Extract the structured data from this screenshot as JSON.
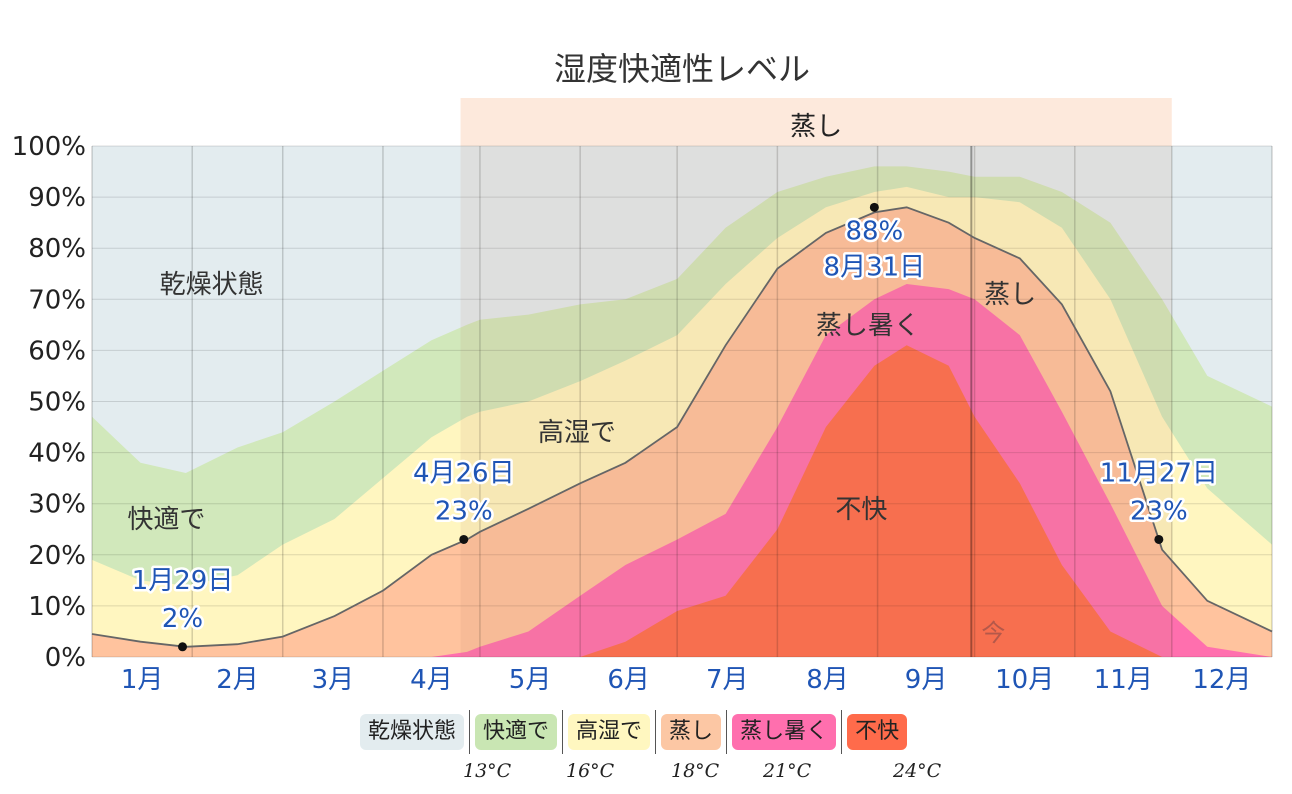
{
  "chart_data": {
    "type": "area",
    "title": "湿度快適性レベル",
    "ylim": [
      0,
      100
    ],
    "y_ticks": [
      "0%",
      "10%",
      "20%",
      "30%",
      "40%",
      "50%",
      "60%",
      "70%",
      "80%",
      "90%",
      "100%"
    ],
    "months": [
      "1月",
      "2月",
      "3月",
      "4月",
      "5月",
      "6月",
      "7月",
      "8月",
      "9月",
      "10月",
      "11月",
      "12月"
    ],
    "x_day": [
      0,
      15,
      29,
      45,
      59,
      75,
      90,
      105,
      116,
      120,
      135,
      151,
      165,
      181,
      196,
      212,
      227,
      242,
      252,
      265,
      273,
      287,
      300,
      315,
      331,
      345,
      365
    ],
    "series": [
      {
        "name": "不快",
        "color": "#ff6b4b",
        "values": [
          0,
          0,
          0,
          0,
          0,
          0,
          0,
          0,
          0,
          0,
          0,
          0,
          3,
          9,
          12,
          25,
          45,
          57,
          61,
          57,
          47,
          34,
          18,
          5,
          0,
          0,
          0
        ]
      },
      {
        "name": "蒸し暑く",
        "color": "#ff6fae",
        "values": [
          0,
          0,
          0,
          0,
          0,
          0,
          0,
          0,
          1,
          2,
          5,
          12,
          18,
          23,
          28,
          45,
          63,
          70,
          73,
          72,
          70,
          63,
          48,
          30,
          10,
          2,
          0
        ]
      },
      {
        "name": "蒸し",
        "color": "#ffc39e",
        "values": [
          4.5,
          3,
          2,
          2.5,
          4,
          8,
          13,
          20,
          23,
          24.5,
          29,
          34,
          38,
          45,
          61,
          76,
          83,
          87,
          88,
          85,
          82,
          78,
          69,
          52,
          21,
          11,
          5
        ]
      },
      {
        "name": "高湿で",
        "color": "#fff6c0",
        "values": [
          19,
          15,
          14,
          16,
          22,
          27,
          35,
          43,
          47,
          48,
          50,
          54,
          58,
          63,
          73,
          82,
          88,
          91,
          92,
          90,
          90,
          89,
          84,
          70,
          47,
          33,
          22
        ]
      },
      {
        "name": "快適で",
        "color": "#d1e8bb",
        "values": [
          47,
          38,
          36,
          41,
          44,
          50,
          56,
          62,
          65,
          66,
          67,
          69,
          70,
          74,
          84,
          91,
          94,
          96,
          96,
          95,
          94,
          94,
          91,
          85,
          70,
          55,
          49
        ]
      },
      {
        "name": "乾燥状態",
        "color": "#e3ecef",
        "values": [
          100,
          100,
          100,
          100,
          100,
          100,
          100,
          100,
          100,
          100,
          100,
          100,
          100,
          100,
          100,
          100,
          100,
          100,
          100,
          100,
          100,
          100,
          100,
          100,
          100,
          100,
          100
        ]
      }
    ],
    "curve_series": "蒸し",
    "zone_labels": [
      {
        "text": "乾燥状態",
        "day": 37,
        "value": 73
      },
      {
        "text": "快適で",
        "day": 23,
        "value": 27
      },
      {
        "text": "高湿で",
        "day": 150,
        "value": 44
      },
      {
        "text": "蒸し",
        "day": 284,
        "value": 71
      },
      {
        "text": "蒸し暑く",
        "day": 240,
        "value": 65
      },
      {
        "text": "不快",
        "day": 238,
        "value": 29
      }
    ],
    "annotations": [
      {
        "date": "1月29日",
        "value_label": "2%",
        "day": 28,
        "value": 2
      },
      {
        "date": "4月26日",
        "value_label": "23%",
        "day": 115,
        "value": 23
      },
      {
        "date": "8月31日",
        "value_label": "88%",
        "day": 242,
        "value": 88
      },
      {
        "date": "11月27日",
        "value_label": "23%",
        "day": 330,
        "value": 23
      }
    ],
    "muggy_season": {
      "label": "蒸し",
      "start_day": 114,
      "end_day": 334
    },
    "now": {
      "label": "今",
      "day": 272
    }
  },
  "legend": {
    "items": [
      {
        "label": "乾燥状態",
        "color": "#e3ecef"
      },
      {
        "label": "快適で",
        "color": "#c9e6b3"
      },
      {
        "label": "高湿で",
        "color": "#fff7c0"
      },
      {
        "label": "蒸し",
        "color": "#fcc7a4"
      },
      {
        "label": "蒸し暑く",
        "color": "#ff6fae"
      },
      {
        "label": "不快",
        "color": "#ff6b4b"
      }
    ],
    "temps": [
      "13°C",
      "16°C",
      "18°C",
      "21°C",
      "24°C"
    ]
  }
}
